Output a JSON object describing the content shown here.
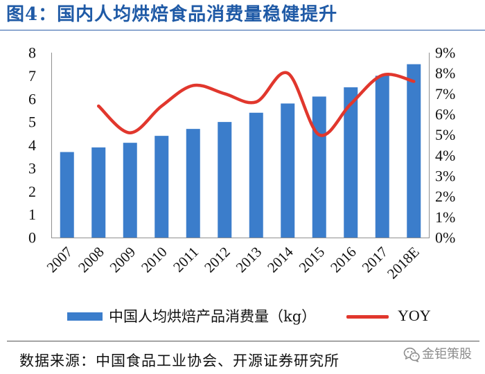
{
  "chart_data": {
    "type": "bar",
    "title": "图4：国内人均烘焙食品消费量稳健提升",
    "categories": [
      "2007",
      "2008",
      "2009",
      "2010",
      "2011",
      "2012",
      "2013",
      "2014",
      "2015",
      "2016",
      "2017",
      "2018E"
    ],
    "series": [
      {
        "name": "中国人均烘焙产品消费量（kg）",
        "type": "bar",
        "values": [
          3.7,
          3.9,
          4.1,
          4.4,
          4.7,
          5.0,
          5.4,
          5.8,
          6.1,
          6.5,
          7.0,
          7.5
        ]
      },
      {
        "name": "YOY",
        "type": "line",
        "smooth": true,
        "values": [
          null,
          6.4,
          5.1,
          6.4,
          7.4,
          7.0,
          6.6,
          8.0,
          5.0,
          6.5,
          7.9,
          7.6
        ]
      }
    ],
    "ylim": [
      0,
      8
    ],
    "y2lim": [
      0,
      9
    ],
    "yticks": [
      "0",
      "1",
      "2",
      "3",
      "4",
      "5",
      "6",
      "7",
      "8"
    ],
    "y2ticks": [
      "0%",
      "1%",
      "2%",
      "3%",
      "4%",
      "5%",
      "6%",
      "7%",
      "8%",
      "9%"
    ],
    "grid": false,
    "legend": "bottom"
  },
  "footer": {
    "source": "数据来源：中国食品工业协会、开源证券研究所",
    "watermark": "金钜策股"
  },
  "icons": {
    "watermark": "wechat-icon"
  },
  "colors": {
    "title": "#1f5aa6",
    "bar": "#3b7dcb",
    "line": "#e1372d",
    "axis": "#8f8f8f",
    "watermark": "#8c8c8c"
  }
}
